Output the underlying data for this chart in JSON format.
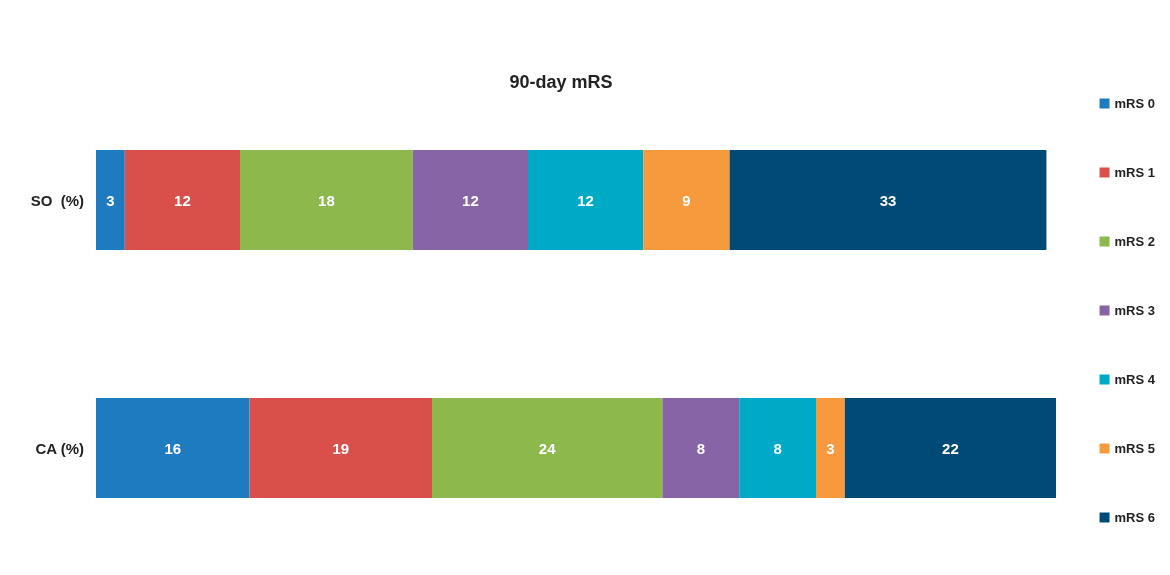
{
  "chart_data": {
    "type": "bar",
    "title": "90-day mRS",
    "orientation": "horizontal",
    "stacked": true,
    "data_labels": true,
    "legend": "right",
    "tick_labels": "y",
    "categories": [
      "SO  (%)",
      "CA (%)"
    ],
    "series": [
      {
        "name": "mRS 0",
        "color": "#1f7bbf",
        "values": [
          3,
          16
        ]
      },
      {
        "name": "mRS 1",
        "color": "#d9504a",
        "values": [
          12,
          19
        ]
      },
      {
        "name": "mRS 2",
        "color": "#8cb84c",
        "values": [
          18,
          24
        ]
      },
      {
        "name": "mRS 3",
        "color": "#8664a6",
        "values": [
          12,
          8
        ]
      },
      {
        "name": "mRS 4",
        "color": "#00a9c6",
        "values": [
          12,
          8
        ]
      },
      {
        "name": "mRS 5",
        "color": "#f79a3e",
        "values": [
          9,
          3
        ]
      },
      {
        "name": "mRS 6",
        "color": "#004a77",
        "values": [
          33,
          22
        ]
      }
    ]
  }
}
